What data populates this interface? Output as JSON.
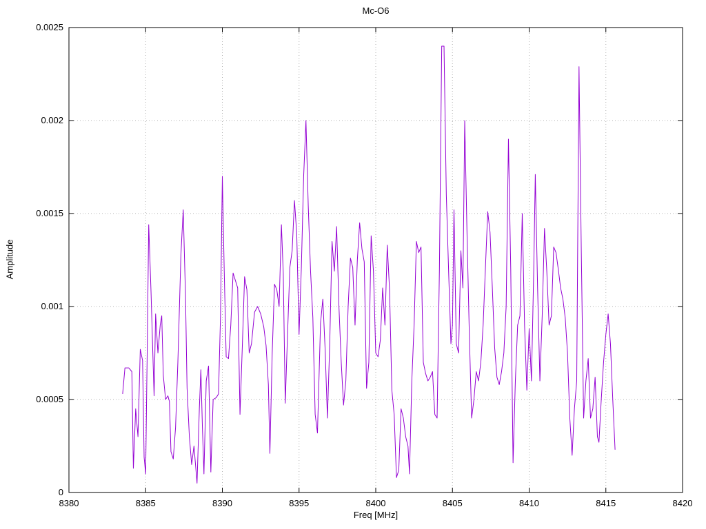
{
  "chart_data": {
    "type": "line",
    "title": "Mc-O6",
    "xlabel": "Freq [MHz]",
    "ylabel": "Amplitude",
    "xlim": [
      8380,
      8420
    ],
    "ylim": [
      0,
      0.0025
    ],
    "x_ticks": [
      8380,
      8385,
      8390,
      8395,
      8400,
      8405,
      8410,
      8415,
      8420
    ],
    "x_tick_labels": [
      "8380",
      "8385",
      "8390",
      "8395",
      "8400",
      "8405",
      "8410",
      "8415",
      "8420"
    ],
    "y_ticks": [
      0,
      0.0005,
      0.001,
      0.0015,
      0.002,
      0.0025
    ],
    "y_tick_labels": [
      "0",
      "0.0005",
      "0.001",
      "0.0015",
      "0.002",
      "0.0025"
    ],
    "grid": true,
    "grid_style": "dotted",
    "legend": "none",
    "line_color": "#9400d3",
    "points": [
      [
        8383.5,
        0.00053
      ],
      [
        8383.65,
        0.00067
      ],
      [
        8383.9,
        0.00067
      ],
      [
        8384.1,
        0.00065
      ],
      [
        8384.2,
        0.00013
      ],
      [
        8384.35,
        0.00045
      ],
      [
        8384.5,
        0.0003
      ],
      [
        8384.65,
        0.00077
      ],
      [
        8384.8,
        0.00071
      ],
      [
        8384.9,
        0.00019
      ],
      [
        8385.0,
        0.0001
      ],
      [
        8385.1,
        0.00075
      ],
      [
        8385.2,
        0.00144
      ],
      [
        8385.35,
        0.00108
      ],
      [
        8385.45,
        0.0008
      ],
      [
        8385.55,
        0.00052
      ],
      [
        8385.65,
        0.00096
      ],
      [
        8385.8,
        0.00075
      ],
      [
        8385.95,
        0.0009
      ],
      [
        8386.05,
        0.00095
      ],
      [
        8386.15,
        0.00063
      ],
      [
        8386.3,
        0.0005
      ],
      [
        8386.45,
        0.00052
      ],
      [
        8386.55,
        0.00049
      ],
      [
        8386.65,
        0.00022
      ],
      [
        8386.8,
        0.00018
      ],
      [
        8386.95,
        0.00035
      ],
      [
        8387.1,
        0.0007
      ],
      [
        8387.3,
        0.00128
      ],
      [
        8387.45,
        0.00152
      ],
      [
        8387.6,
        0.00105
      ],
      [
        8387.7,
        0.00056
      ],
      [
        8387.85,
        0.0003
      ],
      [
        8388.0,
        0.00015
      ],
      [
        8388.15,
        0.00025
      ],
      [
        8388.35,
        5e-05
      ],
      [
        8388.5,
        0.00045
      ],
      [
        8388.6,
        0.00066
      ],
      [
        8388.7,
        0.00035
      ],
      [
        8388.8,
        0.0001
      ],
      [
        8388.95,
        0.0006
      ],
      [
        8389.1,
        0.00068
      ],
      [
        8389.25,
        0.00011
      ],
      [
        8389.4,
        0.0005
      ],
      [
        8389.6,
        0.00051
      ],
      [
        8389.75,
        0.00053
      ],
      [
        8389.88,
        0.00095
      ],
      [
        8390.0,
        0.0017
      ],
      [
        8390.12,
        0.0012
      ],
      [
        8390.25,
        0.00073
      ],
      [
        8390.4,
        0.00072
      ],
      [
        8390.55,
        0.0009
      ],
      [
        8390.7,
        0.00118
      ],
      [
        8390.85,
        0.00114
      ],
      [
        8391.0,
        0.0011
      ],
      [
        8391.15,
        0.00042
      ],
      [
        8391.3,
        0.00078
      ],
      [
        8391.45,
        0.00116
      ],
      [
        8391.6,
        0.00109
      ],
      [
        8391.75,
        0.00075
      ],
      [
        8391.9,
        0.0008
      ],
      [
        8392.1,
        0.00097
      ],
      [
        8392.3,
        0.001
      ],
      [
        8392.5,
        0.00096
      ],
      [
        8392.7,
        0.00089
      ],
      [
        8392.85,
        0.00079
      ],
      [
        8393.0,
        0.00058
      ],
      [
        8393.1,
        0.00021
      ],
      [
        8393.25,
        0.00075
      ],
      [
        8393.4,
        0.00112
      ],
      [
        8393.55,
        0.00109
      ],
      [
        8393.7,
        0.001
      ],
      [
        8393.85,
        0.00144
      ],
      [
        8393.97,
        0.00118
      ],
      [
        8394.1,
        0.00048
      ],
      [
        8394.25,
        0.00085
      ],
      [
        8394.4,
        0.00121
      ],
      [
        8394.55,
        0.0013
      ],
      [
        8394.7,
        0.00157
      ],
      [
        8394.85,
        0.00139
      ],
      [
        8395.0,
        0.00085
      ],
      [
        8395.15,
        0.00121
      ],
      [
        8395.3,
        0.0017
      ],
      [
        8395.45,
        0.002
      ],
      [
        8395.6,
        0.00154
      ],
      [
        8395.75,
        0.00119
      ],
      [
        8395.9,
        0.00094
      ],
      [
        8396.05,
        0.00042
      ],
      [
        8396.2,
        0.00032
      ],
      [
        8396.4,
        0.00091
      ],
      [
        8396.55,
        0.00104
      ],
      [
        8396.7,
        0.00077
      ],
      [
        8396.85,
        0.0004
      ],
      [
        8397.0,
        0.0008
      ],
      [
        8397.15,
        0.00135
      ],
      [
        8397.3,
        0.00119
      ],
      [
        8397.45,
        0.00143
      ],
      [
        8397.6,
        0.001
      ],
      [
        8397.75,
        0.0007
      ],
      [
        8397.9,
        0.00047
      ],
      [
        8398.05,
        0.0006
      ],
      [
        8398.2,
        0.001
      ],
      [
        8398.35,
        0.00126
      ],
      [
        8398.5,
        0.00121
      ],
      [
        8398.65,
        0.0009
      ],
      [
        8398.8,
        0.00125
      ],
      [
        8398.95,
        0.00145
      ],
      [
        8399.1,
        0.00131
      ],
      [
        8399.25,
        0.00124
      ],
      [
        8399.4,
        0.00056
      ],
      [
        8399.55,
        0.0007
      ],
      [
        8399.7,
        0.00138
      ],
      [
        8399.85,
        0.00119
      ],
      [
        8400.0,
        0.00075
      ],
      [
        8400.15,
        0.00073
      ],
      [
        8400.3,
        0.00082
      ],
      [
        8400.45,
        0.0011
      ],
      [
        8400.6,
        0.0009
      ],
      [
        8400.75,
        0.00133
      ],
      [
        8400.9,
        0.00109
      ],
      [
        8401.05,
        0.00055
      ],
      [
        8401.2,
        0.00042
      ],
      [
        8401.35,
        8e-05
      ],
      [
        8401.5,
        0.00012
      ],
      [
        8401.65,
        0.00045
      ],
      [
        8401.8,
        0.0004
      ],
      [
        8401.95,
        0.0003
      ],
      [
        8402.1,
        0.00025
      ],
      [
        8402.2,
        0.0001
      ],
      [
        8402.35,
        0.0006
      ],
      [
        8402.5,
        0.0009
      ],
      [
        8402.65,
        0.00135
      ],
      [
        8402.8,
        0.00129
      ],
      [
        8402.95,
        0.00132
      ],
      [
        8403.1,
        0.0007
      ],
      [
        8403.25,
        0.00064
      ],
      [
        8403.4,
        0.0006
      ],
      [
        8403.55,
        0.00062
      ],
      [
        8403.7,
        0.00065
      ],
      [
        8403.85,
        0.00042
      ],
      [
        8404.0,
        0.0004
      ],
      [
        8404.15,
        0.0012
      ],
      [
        8404.3,
        0.0024
      ],
      [
        8404.45,
        0.0024
      ],
      [
        8404.6,
        0.0016
      ],
      [
        8404.75,
        0.00119
      ],
      [
        8404.9,
        0.0008
      ],
      [
        8405.0,
        0.0009
      ],
      [
        8405.1,
        0.00152
      ],
      [
        8405.25,
        0.0008
      ],
      [
        8405.4,
        0.00075
      ],
      [
        8405.55,
        0.0013
      ],
      [
        8405.68,
        0.0011
      ],
      [
        8405.8,
        0.002
      ],
      [
        8405.95,
        0.00139
      ],
      [
        8406.1,
        0.00085
      ],
      [
        8406.25,
        0.0004
      ],
      [
        8406.4,
        0.0005
      ],
      [
        8406.55,
        0.00065
      ],
      [
        8406.7,
        0.0006
      ],
      [
        8406.85,
        0.0007
      ],
      [
        8407.0,
        0.0009
      ],
      [
        8407.15,
        0.00121
      ],
      [
        8407.3,
        0.00151
      ],
      [
        8407.45,
        0.0014
      ],
      [
        8407.6,
        0.0011
      ],
      [
        8407.75,
        0.00078
      ],
      [
        8407.9,
        0.00062
      ],
      [
        8408.05,
        0.00058
      ],
      [
        8408.2,
        0.00065
      ],
      [
        8408.35,
        0.00075
      ],
      [
        8408.5,
        0.001
      ],
      [
        8408.65,
        0.0019
      ],
      [
        8408.8,
        0.0012
      ],
      [
        8408.95,
        0.00016
      ],
      [
        8409.1,
        0.0006
      ],
      [
        8409.25,
        0.0009
      ],
      [
        8409.4,
        0.00095
      ],
      [
        8409.55,
        0.0015
      ],
      [
        8409.7,
        0.0009
      ],
      [
        8409.85,
        0.00055
      ],
      [
        8410.0,
        0.00088
      ],
      [
        8410.15,
        0.0006
      ],
      [
        8410.3,
        0.0012
      ],
      [
        8410.4,
        0.00171
      ],
      [
        8410.55,
        0.0011
      ],
      [
        8410.7,
        0.0006
      ],
      [
        8410.85,
        0.00095
      ],
      [
        8411.0,
        0.00142
      ],
      [
        8411.15,
        0.00119
      ],
      [
        8411.3,
        0.0009
      ],
      [
        8411.45,
        0.00095
      ],
      [
        8411.6,
        0.00132
      ],
      [
        8411.75,
        0.00129
      ],
      [
        8411.9,
        0.0012
      ],
      [
        8412.05,
        0.0011
      ],
      [
        8412.2,
        0.00104
      ],
      [
        8412.35,
        0.00094
      ],
      [
        8412.5,
        0.00075
      ],
      [
        8412.65,
        0.0004
      ],
      [
        8412.8,
        0.0002
      ],
      [
        8412.95,
        0.00045
      ],
      [
        8413.1,
        0.0006
      ],
      [
        8413.25,
        0.00229
      ],
      [
        8413.4,
        0.00129
      ],
      [
        8413.55,
        0.0004
      ],
      [
        8413.7,
        0.0006
      ],
      [
        8413.85,
        0.00072
      ],
      [
        8414.0,
        0.0004
      ],
      [
        8414.15,
        0.00045
      ],
      [
        8414.3,
        0.00062
      ],
      [
        8414.45,
        0.0003
      ],
      [
        8414.55,
        0.00027
      ],
      [
        8414.7,
        0.0005
      ],
      [
        8414.85,
        0.0007
      ],
      [
        8415.0,
        0.00085
      ],
      [
        8415.15,
        0.00096
      ],
      [
        8415.3,
        0.0008
      ],
      [
        8415.45,
        0.0005
      ],
      [
        8415.6,
        0.00023
      ]
    ]
  }
}
